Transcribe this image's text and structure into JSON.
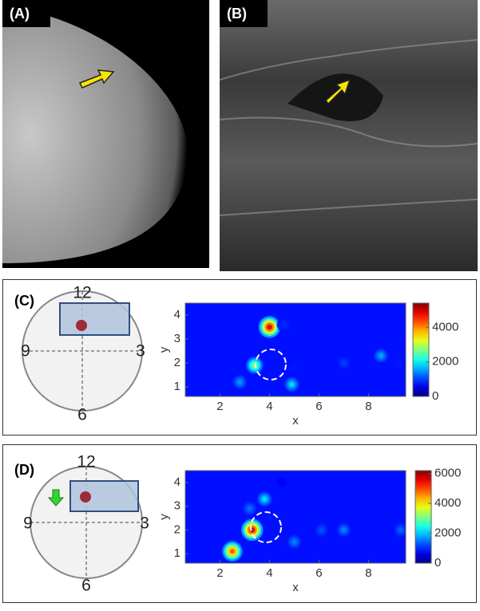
{
  "panels": [
    {
      "label": "(A)"
    },
    {
      "label": "(B)"
    },
    {
      "label": "(C)",
      "clock": [
        "12",
        "9",
        "3",
        "6"
      ],
      "heatmap": {
        "xlabel": "x",
        "ylabel": "y",
        "xlim": [
          0.6,
          9.5
        ],
        "ylim": [
          0.6,
          4.5
        ],
        "xticks": [
          2,
          4,
          6,
          8
        ],
        "yticks": [
          1,
          2,
          3,
          4
        ],
        "clim": [
          0,
          5400
        ],
        "cticks": [
          0,
          2000,
          4000
        ],
        "hotspots": [
          {
            "x": 4,
            "y": 3.5,
            "value": 5000
          },
          {
            "x": 3.4,
            "y": 1.9,
            "value": 2900
          },
          {
            "x": 2.8,
            "y": 1.2,
            "value": 1500
          },
          {
            "x": 4.9,
            "y": 1.1,
            "value": 1900
          },
          {
            "x": 5,
            "y": 1.8,
            "value": 800
          },
          {
            "x": 4.6,
            "y": 3.6,
            "value": 900
          },
          {
            "x": 8.5,
            "y": 2.3,
            "value": 1600
          },
          {
            "x": 7,
            "y": 2,
            "value": 1000
          },
          {
            "x": 9.2,
            "y": 2,
            "value": 800
          }
        ]
      }
    },
    {
      "label": "(D)",
      "clock": [
        "12",
        "9",
        "3",
        "6"
      ],
      "heatmap": {
        "xlabel": "x",
        "ylabel": "y",
        "xlim": [
          0.6,
          9.5
        ],
        "ylim": [
          0.6,
          4.5
        ],
        "xticks": [
          2,
          4,
          6,
          8
        ],
        "yticks": [
          1,
          2,
          3,
          4
        ],
        "clim": [
          0,
          6200
        ],
        "cticks": [
          0,
          2000,
          4000,
          6000
        ],
        "hotspots": [
          {
            "x": 2.5,
            "y": 1.1,
            "value": 5000
          },
          {
            "x": 3.3,
            "y": 2,
            "value": 5800
          },
          {
            "x": 3.8,
            "y": 3.3,
            "value": 2200
          },
          {
            "x": 3.2,
            "y": 2.9,
            "value": 1500
          },
          {
            "x": 5,
            "y": 1.5,
            "value": 1600
          },
          {
            "x": 6.1,
            "y": 2,
            "value": 1300
          },
          {
            "x": 7,
            "y": 2,
            "value": 1600
          },
          {
            "x": 9.3,
            "y": 2,
            "value": 1400
          },
          {
            "x": 4.5,
            "y": 4,
            "value": 700
          }
        ]
      }
    }
  ]
}
